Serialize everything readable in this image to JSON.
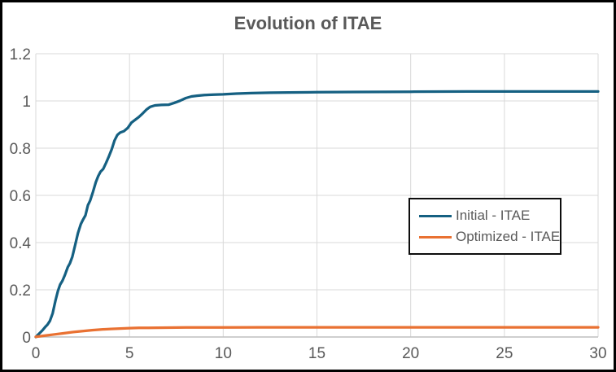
{
  "chart": {
    "title": "Evolution of ITAE",
    "background": "#FFFFFF",
    "frame_border_color": "#000000",
    "legend_border_color": "#0D0D0D",
    "grid_color": "#D9D9D9",
    "axis_line_color": "#BFBFBF",
    "text_color": "#595959"
  },
  "chart_data": {
    "type": "line",
    "title": "Evolution of ITAE",
    "xlabel": "",
    "ylabel": "",
    "xlim": [
      0,
      30
    ],
    "ylim": [
      0,
      1.2
    ],
    "x_ticks": [
      0,
      5,
      10,
      15,
      20,
      25,
      30
    ],
    "x_tick_labels": [
      "0",
      "5",
      "10",
      "15",
      "20",
      "25",
      "30"
    ],
    "y_ticks": [
      0,
      0.2,
      0.4,
      0.6,
      0.8,
      1.0,
      1.2
    ],
    "y_tick_labels": [
      "0",
      "0.2",
      "0.4",
      "0.6",
      "0.8",
      "1",
      "1.2"
    ],
    "grid": true,
    "legend_position": "inside-right",
    "series": [
      {
        "name": "Initial - ITAE",
        "color": "#156082",
        "final_value": 1.04,
        "points": [
          [
            0,
            0
          ],
          [
            0.1,
            0.008
          ],
          [
            0.2,
            0.016
          ],
          [
            0.35,
            0.028
          ],
          [
            0.5,
            0.042
          ],
          [
            0.62,
            0.052
          ],
          [
            0.75,
            0.068
          ],
          [
            0.9,
            0.1
          ],
          [
            1.05,
            0.155
          ],
          [
            1.18,
            0.195
          ],
          [
            1.3,
            0.222
          ],
          [
            1.42,
            0.238
          ],
          [
            1.55,
            0.262
          ],
          [
            1.7,
            0.295
          ],
          [
            1.82,
            0.312
          ],
          [
            1.95,
            0.34
          ],
          [
            2.1,
            0.39
          ],
          [
            2.25,
            0.44
          ],
          [
            2.4,
            0.478
          ],
          [
            2.52,
            0.497
          ],
          [
            2.65,
            0.515
          ],
          [
            2.78,
            0.558
          ],
          [
            2.9,
            0.578
          ],
          [
            3.05,
            0.615
          ],
          [
            3.2,
            0.655
          ],
          [
            3.32,
            0.68
          ],
          [
            3.45,
            0.7
          ],
          [
            3.6,
            0.712
          ],
          [
            3.75,
            0.738
          ],
          [
            3.9,
            0.765
          ],
          [
            4.05,
            0.795
          ],
          [
            4.2,
            0.832
          ],
          [
            4.35,
            0.856
          ],
          [
            4.5,
            0.866
          ],
          [
            4.7,
            0.872
          ],
          [
            4.9,
            0.885
          ],
          [
            5.1,
            0.908
          ],
          [
            5.3,
            0.92
          ],
          [
            5.5,
            0.932
          ],
          [
            5.7,
            0.947
          ],
          [
            5.9,
            0.963
          ],
          [
            6.1,
            0.975
          ],
          [
            6.35,
            0.981
          ],
          [
            6.7,
            0.983
          ],
          [
            7.1,
            0.984
          ],
          [
            7.4,
            0.992
          ],
          [
            7.7,
            1.001
          ],
          [
            8.0,
            1.012
          ],
          [
            8.3,
            1.019
          ],
          [
            8.6,
            1.022
          ],
          [
            9.0,
            1.025
          ],
          [
            9.5,
            1.027
          ],
          [
            10,
            1.028
          ],
          [
            10.7,
            1.031
          ],
          [
            11.5,
            1.033
          ],
          [
            12.5,
            1.035
          ],
          [
            13.5,
            1.036
          ],
          [
            15,
            1.037
          ],
          [
            17,
            1.038
          ],
          [
            20,
            1.039
          ],
          [
            23,
            1.04
          ],
          [
            26,
            1.04
          ],
          [
            30,
            1.04
          ]
        ]
      },
      {
        "name": "Optimized - ITAE",
        "color": "#E97132",
        "final_value": 0.041,
        "points": [
          [
            0,
            0.001
          ],
          [
            0.5,
            0.006
          ],
          [
            1,
            0.011
          ],
          [
            1.5,
            0.016
          ],
          [
            2,
            0.021
          ],
          [
            2.5,
            0.025
          ],
          [
            3,
            0.029
          ],
          [
            3.5,
            0.032
          ],
          [
            4,
            0.034
          ],
          [
            4.5,
            0.036
          ],
          [
            5,
            0.0375
          ],
          [
            5.5,
            0.0385
          ],
          [
            6,
            0.039
          ],
          [
            7,
            0.0398
          ],
          [
            8,
            0.0402
          ],
          [
            9,
            0.0405
          ],
          [
            10,
            0.0407
          ],
          [
            12,
            0.041
          ],
          [
            15,
            0.041
          ],
          [
            20,
            0.041
          ],
          [
            25,
            0.041
          ],
          [
            30,
            0.041
          ]
        ]
      }
    ]
  }
}
